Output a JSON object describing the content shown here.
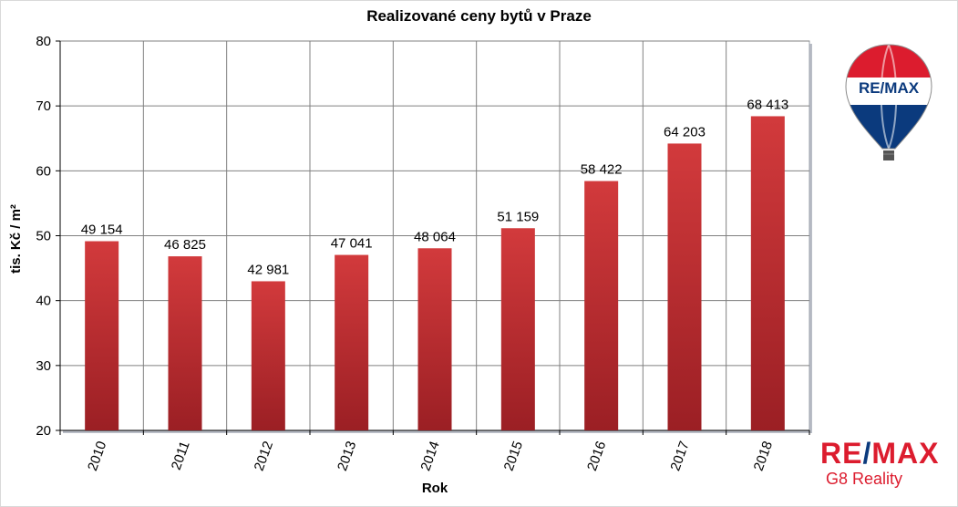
{
  "chart_data": {
    "type": "bar",
    "title": "Realizované ceny bytů v Praze",
    "xlabel": "Rok",
    "ylabel": "tis. Kč / m²",
    "categories": [
      "2010",
      "2011",
      "2012",
      "2013",
      "2014",
      "2015",
      "2016",
      "2017",
      "2018"
    ],
    "values": [
      49.154,
      46.825,
      42.981,
      47.041,
      48.064,
      51.159,
      58.422,
      64.203,
      68.413
    ],
    "data_labels": [
      "49 154",
      "46 825",
      "42 981",
      "47 041",
      "48 064",
      "51 159",
      "58 422",
      "64 203",
      "68 413"
    ],
    "ylim": [
      20,
      80
    ],
    "yticks": [
      20,
      30,
      40,
      50,
      60,
      70,
      80
    ],
    "grid": true,
    "legend": "none",
    "bar_color": "#c0282c",
    "bar_color_dark": "#9b1f24"
  },
  "branding": {
    "logo_left": "RE",
    "logo_slash": "/",
    "logo_right": "MAX",
    "balloon_text": "RE/MAX",
    "subtitle": "G8 Reality",
    "red": "#dc1c2e",
    "blue": "#0b3a7d"
  }
}
